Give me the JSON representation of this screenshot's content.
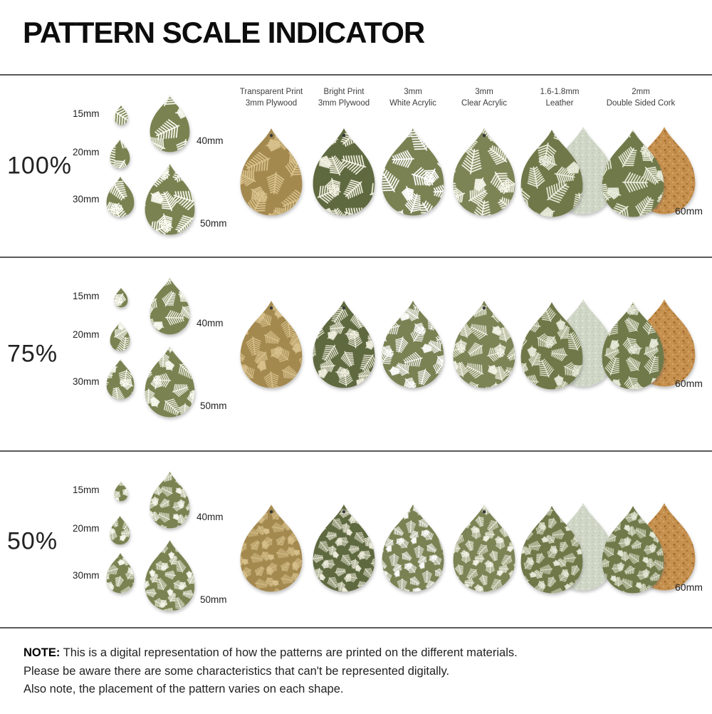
{
  "title": "PATTERN SCALE INDICATOR",
  "rows": [
    {
      "scale_label": "100%",
      "pattern_scale": 1.0
    },
    {
      "scale_label": "75%",
      "pattern_scale": 0.75
    },
    {
      "scale_label": "50%",
      "pattern_scale": 0.5
    }
  ],
  "size_reference": {
    "labels": [
      "15mm",
      "20mm",
      "30mm",
      "40mm",
      "50mm"
    ]
  },
  "max_size_label": "60mm",
  "materials": [
    {
      "label_lines": [
        "Transparent Print",
        "3mm Plywood"
      ],
      "base_color": "#a4894f",
      "leaf_color": "#d9c28d",
      "has_hole": true,
      "backing": null
    },
    {
      "label_lines": [
        "Bright Print",
        "3mm Plywood"
      ],
      "base_color": "#5e693f",
      "leaf_color": "#f3f1e2",
      "has_hole": true,
      "backing": null
    },
    {
      "label_lines": [
        "3mm",
        "White Acrylic"
      ],
      "base_color": "#7a8153",
      "leaf_color": "#ffffff",
      "has_hole": false,
      "backing": null
    },
    {
      "label_lines": [
        "3mm",
        "Clear Acrylic"
      ],
      "base_color": "#7b8354",
      "leaf_color": "#f6f5ea",
      "has_hole": true,
      "backing": null
    },
    {
      "label_lines": [
        "1.6-1.8mm",
        "Leather"
      ],
      "base_color": "#6f7848",
      "leaf_color": "#e9ecdc",
      "has_hole": false,
      "backing": "suede"
    },
    {
      "label_lines": [
        "2mm",
        "Double Sided Cork"
      ],
      "base_color": "#70794a",
      "leaf_color": "#e9ecdc",
      "has_hole": false,
      "backing": "cork"
    }
  ],
  "reference_colors": {
    "base": "#7a8251",
    "leaf": "#fbfbf3"
  },
  "backing_colors": {
    "suede": "#cfd6c6",
    "cork": "#c69050"
  },
  "note": {
    "label": "NOTE:",
    "lines": [
      "This is a digital representation of how the patterns are printed on the different materials.",
      "Please be aware there are some characteristics that can't be represented digitally.",
      "Also note, the placement of the pattern varies on each shape."
    ]
  }
}
